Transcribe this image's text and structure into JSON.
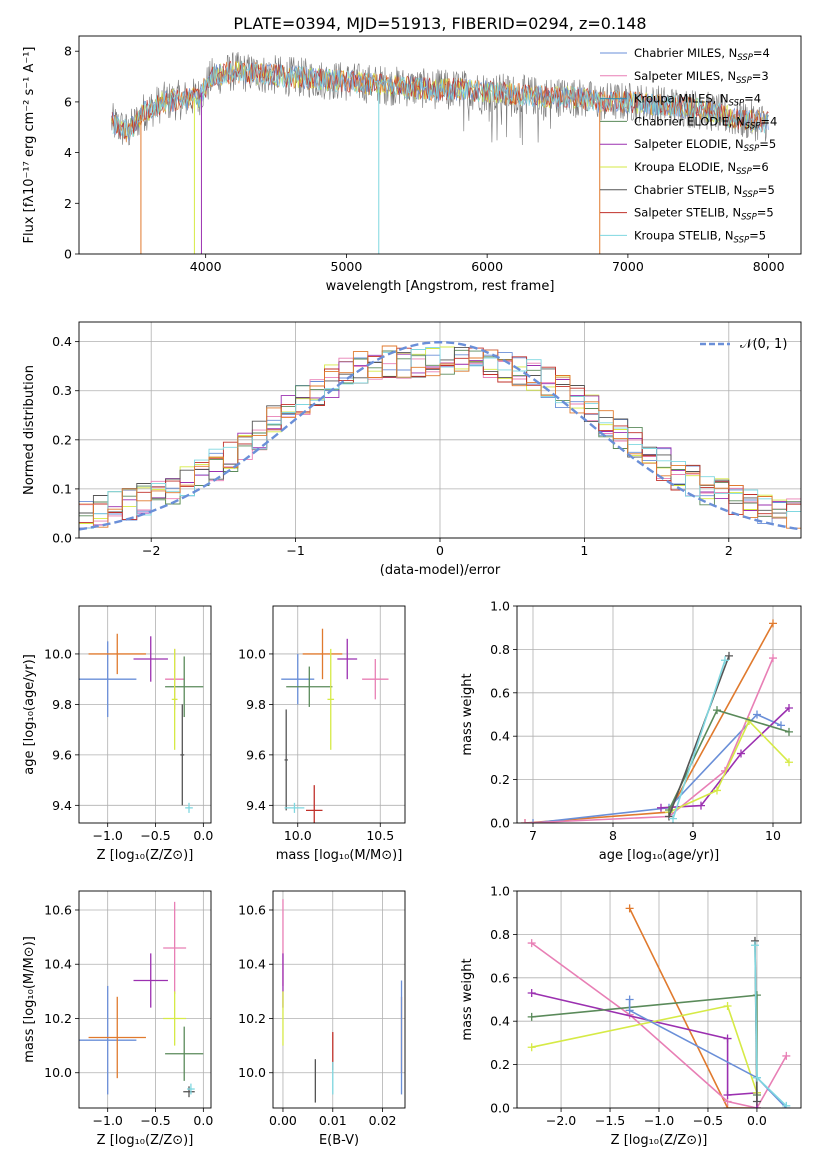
{
  "title": "PLATE=0394, MJD=51913, FIBERID=0294, z=0.148",
  "colors": {
    "Chabrier MILES": "#6a8fd8",
    "Salpeter MILES": "#e07a2e",
    "Kroupa MILES": "#2e8fb0",
    "Chabrier ELODIE": "#5a8a5a",
    "Salpeter ELODIE": "#9b30b0",
    "Kroupa ELODIE": "#d6ea46",
    "Chabrier STELIB": "#555555",
    "Salpeter STELIB": "#c0302a",
    "Kroupa STELIB": "#7fd7e0",
    "Extra pink": "#e87fb5",
    "gauss": "#6a8fd8"
  },
  "chart_data": [
    {
      "id": "spectrum",
      "type": "line",
      "title": "PLATE=0394, MJD=51913, FIBERID=0294, z=0.148",
      "xlabel": "wavelength [Angstrom, rest frame]",
      "ylabel": "Flux [fλ10⁻¹⁷ erg cm⁻² s⁻¹ A⁻¹]",
      "xlim": [
        3100,
        8230
      ],
      "ylim": [
        0,
        8.6
      ],
      "xticks": [
        4000,
        5000,
        6000,
        7000,
        8000
      ],
      "yticks": [
        0,
        2,
        4,
        6,
        8
      ],
      "legend_position": "upper-right",
      "legend": [
        "Chabrier MILES, N_SSP=4",
        "Salpeter MILES, N_SSP=3",
        "Kroupa MILES, N_SSP=4",
        "Chabrier ELODIE, N_SSP=4",
        "Salpeter ELODIE, N_SSP=5",
        "Kroupa ELODIE, N_SSP=6",
        "Chabrier STELIB, N_SSP=5",
        "Salpeter STELIB, N_SSP=5",
        "Kroupa STELIB, N_SSP=5"
      ],
      "envelope": {
        "x": [
          3330,
          3450,
          3560,
          3700,
          3850,
          3950,
          4050,
          4200,
          4400,
          4600,
          4800,
          5000,
          5200,
          5400,
          5600,
          5800,
          6000,
          6200,
          6400,
          6600,
          6800,
          7000,
          7200,
          7400,
          7600,
          7800,
          8000
        ],
        "y": [
          5.2,
          4.8,
          5.6,
          6.0,
          6.1,
          6.2,
          7.0,
          7.2,
          7.1,
          7.0,
          6.9,
          6.8,
          6.7,
          6.6,
          6.5,
          6.5,
          6.4,
          6.3,
          6.2,
          6.2,
          6.0,
          6.0,
          5.9,
          5.8,
          5.6,
          5.3,
          5.2
        ]
      },
      "dips": [
        3540,
        3920,
        3970,
        5230,
        6800
      ]
    },
    {
      "id": "residuals",
      "type": "histogram",
      "xlabel": "(data-model)/error",
      "ylabel": "Normed distribution",
      "xlim": [
        -2.5,
        2.5
      ],
      "ylim": [
        0,
        0.44
      ],
      "xticks": [
        -2,
        -1,
        0,
        1,
        2
      ],
      "yticks": [
        0,
        0.1,
        0.2,
        0.3,
        0.4
      ],
      "legend_position": "upper-right",
      "legend_label": "𝒩(0, 1)",
      "bin_width": 0.1
    },
    {
      "id": "age_vs_Z",
      "type": "errorbar",
      "xlabel": "Z [log₁₀(Z/Z⊙)]",
      "ylabel": "age  [log₁₀(age/yr)]",
      "xlim": [
        -1.3,
        0.08
      ],
      "ylim": [
        9.33,
        10.19
      ],
      "xticks": [
        -1.0,
        -0.5,
        0.0
      ],
      "yticks": [
        9.4,
        9.6,
        9.8,
        10.0
      ],
      "points": [
        {
          "c": "Chabrier MILES",
          "x": -1.0,
          "y": 9.9,
          "xe": 0.3,
          "ye": 0.15
        },
        {
          "c": "Salpeter MILES",
          "x": -0.9,
          "y": 10.0,
          "xe": 0.3,
          "ye": 0.08
        },
        {
          "c": "Salpeter ELODIE",
          "x": -0.55,
          "y": 9.98,
          "xe": 0.18,
          "ye": 0.09
        },
        {
          "c": "Extra pink",
          "x": -0.3,
          "y": 9.9,
          "xe": 0.1,
          "ye": 0.12
        },
        {
          "c": "Chabrier ELODIE",
          "x": -0.2,
          "y": 9.87,
          "xe": 0.2,
          "ye": 0.12
        },
        {
          "c": "Kroupa ELODIE",
          "x": -0.3,
          "y": 9.82,
          "xe": 0.03,
          "ye": 0.2
        },
        {
          "c": "Chabrier STELIB",
          "x": -0.22,
          "y": 9.6,
          "xe": 0.02,
          "ye": 0.2
        },
        {
          "c": "Kroupa STELIB",
          "x": -0.15,
          "y": 9.39,
          "xe": 0.04,
          "ye": 0.02
        }
      ]
    },
    {
      "id": "age_vs_mass",
      "type": "errorbar",
      "xlabel": "mass [log₁₀(M/M⊙)]",
      "xlim": [
        9.85,
        10.65
      ],
      "ylim": [
        9.33,
        10.19
      ],
      "xticks": [
        10.0,
        10.5
      ],
      "yticks": [
        9.4,
        9.6,
        9.8,
        10.0
      ],
      "points": [
        {
          "c": "Chabrier MILES",
          "x": 10.0,
          "y": 9.9,
          "xe": 0.1,
          "ye": 0.1
        },
        {
          "c": "Salpeter MILES",
          "x": 10.15,
          "y": 10.0,
          "xe": 0.12,
          "ye": 0.1
        },
        {
          "c": "Salpeter ELODIE",
          "x": 10.3,
          "y": 9.98,
          "xe": 0.06,
          "ye": 0.08
        },
        {
          "c": "Extra pink",
          "x": 10.47,
          "y": 9.9,
          "xe": 0.08,
          "ye": 0.08
        },
        {
          "c": "Chabrier ELODIE",
          "x": 10.07,
          "y": 9.87,
          "xe": 0.14,
          "ye": 0.08
        },
        {
          "c": "Kroupa ELODIE",
          "x": 10.2,
          "y": 9.82,
          "xe": 0.02,
          "ye": 0.2
        },
        {
          "c": "Chabrier STELIB",
          "x": 9.93,
          "y": 9.58,
          "xe": 0.01,
          "ye": 0.2
        },
        {
          "c": "Salpeter STELIB",
          "x": 10.1,
          "y": 9.38,
          "xe": 0.05,
          "ye": 0.1
        },
        {
          "c": "Kroupa STELIB",
          "x": 9.98,
          "y": 9.39,
          "xe": 0.06,
          "ye": 0.02
        }
      ]
    },
    {
      "id": "mw_vs_age",
      "type": "line",
      "xlabel": "age  [log₁₀(age/yr)]",
      "ylabel": "mass weight",
      "xlim": [
        6.8,
        10.35
      ],
      "ylim": [
        0,
        1.0
      ],
      "xticks": [
        7,
        8,
        9,
        10
      ],
      "yticks": [
        0.0,
        0.2,
        0.4,
        0.6,
        0.8,
        1.0
      ],
      "series": [
        {
          "c": "Salpeter MILES",
          "x": [
            6.9,
            8.7,
            10.0
          ],
          "y": [
            0.0,
            0.05,
            0.92
          ]
        },
        {
          "c": "Chabrier MILES",
          "x": [
            7.0,
            8.7,
            9.8,
            10.1
          ],
          "y": [
            0.0,
            0.07,
            0.5,
            0.45
          ]
        },
        {
          "c": "Extra pink",
          "x": [
            6.9,
            8.7,
            9.4,
            10.0
          ],
          "y": [
            0.0,
            0.03,
            0.24,
            0.76
          ]
        },
        {
          "c": "Salpeter ELODIE",
          "x": [
            8.6,
            9.1,
            9.6,
            10.2
          ],
          "y": [
            0.07,
            0.08,
            0.32,
            0.53
          ]
        },
        {
          "c": "Kroupa ELODIE",
          "x": [
            8.7,
            9.3,
            9.7,
            10.2
          ],
          "y": [
            0.05,
            0.15,
            0.47,
            0.28
          ]
        },
        {
          "c": "Chabrier ELODIE",
          "x": [
            8.7,
            9.3,
            10.2
          ],
          "y": [
            0.06,
            0.52,
            0.42
          ]
        },
        {
          "c": "Chabrier STELIB",
          "x": [
            8.7,
            9.45
          ],
          "y": [
            0.03,
            0.77
          ]
        },
        {
          "c": "Kroupa STELIB",
          "x": [
            8.75,
            9.4
          ],
          "y": [
            0.02,
            0.75
          ]
        }
      ]
    },
    {
      "id": "mass_vs_Z",
      "type": "errorbar",
      "xlabel": "Z [log₁₀(Z/Z⊙)]",
      "ylabel": "mass [log₁₀(M/M⊙)]",
      "xlim": [
        -1.3,
        0.08
      ],
      "ylim": [
        9.87,
        10.67
      ],
      "xticks": [
        -1.0,
        -0.5,
        0.0
      ],
      "yticks": [
        10.0,
        10.2,
        10.4,
        10.6
      ],
      "points": [
        {
          "c": "Chabrier MILES",
          "x": -1.0,
          "y": 10.12,
          "xe": 0.3,
          "ye": 0.2
        },
        {
          "c": "Salpeter MILES",
          "x": -0.9,
          "y": 10.13,
          "xe": 0.3,
          "ye": 0.15
        },
        {
          "c": "Salpeter ELODIE",
          "x": -0.55,
          "y": 10.34,
          "xe": 0.18,
          "ye": 0.1
        },
        {
          "c": "Extra pink",
          "x": -0.3,
          "y": 10.46,
          "xe": 0.12,
          "ye": 0.17
        },
        {
          "c": "Kroupa ELODIE",
          "x": -0.3,
          "y": 10.2,
          "xe": 0.12,
          "ye": 0.1
        },
        {
          "c": "Chabrier ELODIE",
          "x": -0.2,
          "y": 10.07,
          "xe": 0.2,
          "ye": 0.1
        },
        {
          "c": "Chabrier STELIB",
          "x": -0.15,
          "y": 9.93,
          "xe": 0.06,
          "ye": 0.02
        },
        {
          "c": "Kroupa STELIB",
          "x": -0.13,
          "y": 9.94,
          "xe": 0.04,
          "ye": 0.02
        }
      ]
    },
    {
      "id": "mass_vs_ebv",
      "type": "errorbar",
      "xlabel": "E(B-V)",
      "xlim": [
        -0.002,
        0.0245
      ],
      "ylim": [
        9.87,
        10.67
      ],
      "xticks": [
        0.0,
        0.01,
        0.02
      ],
      "yticks": [
        10.0,
        10.2,
        10.4,
        10.6
      ],
      "points": [
        {
          "c": "Extra pink",
          "x": 0.0,
          "y": 10.48,
          "xe": 0,
          "ye": 0.16
        },
        {
          "c": "Salpeter ELODIE",
          "x": 0.0,
          "y": 10.34,
          "xe": 0,
          "ye": 0.1
        },
        {
          "c": "Kroupa ELODIE",
          "x": 0.0,
          "y": 10.2,
          "xe": 0,
          "ye": 0.1
        },
        {
          "c": "Chabrier STELIB",
          "x": 0.0065,
          "y": 9.97,
          "xe": 0,
          "ye": 0.08
        },
        {
          "c": "Salpeter STELIB",
          "x": 0.01,
          "y": 10.08,
          "xe": 0,
          "ye": 0.07
        },
        {
          "c": "Kroupa STELIB",
          "x": 0.01,
          "y": 9.98,
          "xe": 0,
          "ye": 0.06
        },
        {
          "c": "Salpeter MILES",
          "x": 0.0238,
          "y": 10.14,
          "xe": 0,
          "ye": 0.14
        },
        {
          "c": "Chabrier MILES",
          "x": 0.0238,
          "y": 10.13,
          "xe": 0,
          "ye": 0.21
        }
      ]
    },
    {
      "id": "mw_vs_Z",
      "type": "line",
      "xlabel": "Z [log₁₀(Z/Z⊙)]",
      "ylabel": "mass weight",
      "xlim": [
        -2.45,
        0.45
      ],
      "ylim": [
        0,
        1.0
      ],
      "xticks": [
        -2.0,
        -1.5,
        -1.0,
        -0.5,
        0.0
      ],
      "yticks": [
        0.0,
        0.2,
        0.4,
        0.6,
        0.8,
        1.0
      ],
      "series": [
        {
          "c": "Salpeter MILES",
          "x": [
            -1.3,
            -0.3,
            0.0
          ],
          "y": [
            0.92,
            0.0,
            0.0
          ]
        },
        {
          "c": "Extra pink",
          "x": [
            -2.3,
            -1.3,
            -0.3,
            0.0,
            0.3
          ],
          "y": [
            0.76,
            0.43,
            0.03,
            0.0,
            0.24
          ]
        },
        {
          "c": "Salpeter ELODIE",
          "x": [
            -2.3,
            -0.3,
            -0.3,
            0.0,
            0.0
          ],
          "y": [
            0.53,
            0.32,
            0.06,
            0.07,
            0.0
          ]
        },
        {
          "c": "Chabrier ELODIE",
          "x": [
            -2.3,
            0.0,
            0.0
          ],
          "y": [
            0.42,
            0.52,
            0.06
          ]
        },
        {
          "c": "Kroupa ELODIE",
          "x": [
            -2.3,
            -0.3,
            0.0
          ],
          "y": [
            0.28,
            0.47,
            0.07
          ]
        },
        {
          "c": "Chabrier MILES",
          "x": [
            -1.3,
            -1.3,
            0.0,
            0.3
          ],
          "y": [
            0.5,
            0.45,
            0.14,
            0.0
          ]
        },
        {
          "c": "Chabrier STELIB",
          "x": [
            -0.02,
            0.0
          ],
          "y": [
            0.77,
            0.03
          ]
        },
        {
          "c": "Kroupa STELIB",
          "x": [
            -0.02,
            0.0,
            0.3
          ],
          "y": [
            0.75,
            0.14,
            0.01
          ]
        }
      ]
    }
  ]
}
